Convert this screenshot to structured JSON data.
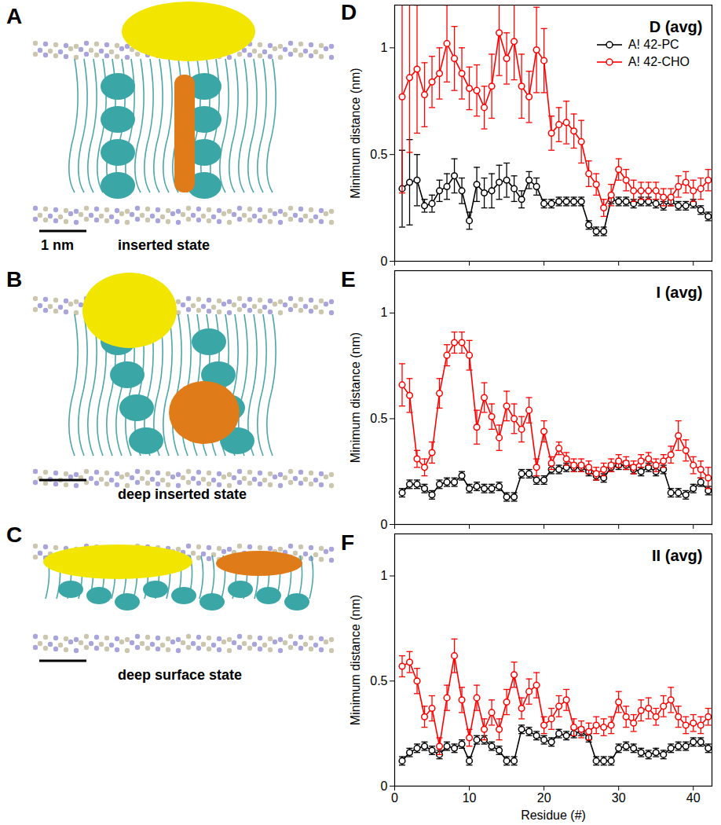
{
  "images": [
    {
      "letter": "A",
      "caption": "inserted state"
    },
    {
      "letter": "B",
      "caption": "deep inserted state"
    },
    {
      "letter": "C",
      "caption": "deep surface state"
    }
  ],
  "scale_bar_label": "1 nm",
  "chart_data": [
    {
      "type": "line",
      "panel": "D",
      "title": "D (avg)",
      "y_label": "Minimum distance (nm)",
      "x": [
        1,
        2,
        3,
        4,
        5,
        6,
        7,
        8,
        9,
        10,
        11,
        12,
        13,
        14,
        15,
        16,
        17,
        18,
        19,
        20,
        21,
        22,
        23,
        24,
        25,
        26,
        27,
        28,
        29,
        30,
        31,
        32,
        33,
        34,
        35,
        36,
        37,
        38,
        39,
        40,
        41,
        42
      ],
      "xlim": [
        0,
        42.5
      ],
      "xticks": [
        0,
        10,
        20,
        30,
        40
      ],
      "ylim": [
        0,
        1.2
      ],
      "yticks": [
        0,
        0.5,
        1
      ],
      "tick_labels": "y",
      "legend": "top-right",
      "series": [
        {
          "name": "A! 42-PC",
          "color": "#000000",
          "marker": "circle",
          "values": [
            0.34,
            0.37,
            0.38,
            0.26,
            0.27,
            0.33,
            0.35,
            0.4,
            0.33,
            0.19,
            0.36,
            0.32,
            0.33,
            0.37,
            0.38,
            0.34,
            0.29,
            0.38,
            0.35,
            0.27,
            0.27,
            0.28,
            0.28,
            0.28,
            0.28,
            0.17,
            0.14,
            0.14,
            0.29,
            0.28,
            0.28,
            0.27,
            0.28,
            0.28,
            0.27,
            0.26,
            0.28,
            0.26,
            0.26,
            0.27,
            0.24,
            0.21
          ],
          "errors": [
            0.18,
            0.2,
            0.12,
            0.03,
            0.04,
            0.05,
            0.06,
            0.08,
            0.06,
            0.04,
            0.08,
            0.07,
            0.08,
            0.08,
            0.08,
            0.06,
            0.04,
            0.04,
            0.04,
            0.02,
            0.02,
            0.02,
            0.02,
            0.02,
            0.02,
            0.02,
            0.02,
            0.02,
            0.02,
            0.02,
            0.02,
            0.02,
            0.02,
            0.02,
            0.02,
            0.02,
            0.02,
            0.02,
            0.02,
            0.02,
            0.02,
            0.02
          ]
        },
        {
          "name": "A! 42-CHO",
          "color": "#ff0000",
          "marker": "circle",
          "values": [
            0.77,
            0.86,
            0.9,
            0.78,
            0.84,
            0.88,
            1.02,
            0.95,
            0.88,
            0.81,
            0.8,
            0.72,
            0.82,
            1.07,
            0.95,
            1.03,
            0.82,
            0.77,
            0.99,
            0.94,
            0.6,
            0.64,
            0.65,
            0.61,
            0.56,
            0.41,
            0.36,
            0.25,
            0.31,
            0.43,
            0.38,
            0.33,
            0.33,
            0.33,
            0.33,
            0.3,
            0.3,
            0.35,
            0.37,
            0.33,
            0.34,
            0.38
          ],
          "errors": [
            0.45,
            0.35,
            0.3,
            0.15,
            0.12,
            0.12,
            0.18,
            0.15,
            0.12,
            0.1,
            0.12,
            0.1,
            0.15,
            0.2,
            0.12,
            0.18,
            0.15,
            0.12,
            0.2,
            0.15,
            0.08,
            0.08,
            0.1,
            0.08,
            0.1,
            0.06,
            0.05,
            0.04,
            0.05,
            0.05,
            0.05,
            0.05,
            0.04,
            0.04,
            0.04,
            0.04,
            0.04,
            0.05,
            0.05,
            0.05,
            0.05,
            0.05
          ]
        }
      ]
    },
    {
      "type": "line",
      "panel": "E",
      "title": "I (avg)",
      "y_label": "Minimum distance (nm)",
      "x": [
        1,
        2,
        3,
        4,
        5,
        6,
        7,
        8,
        9,
        10,
        11,
        12,
        13,
        14,
        15,
        16,
        17,
        18,
        19,
        20,
        21,
        22,
        23,
        24,
        25,
        26,
        27,
        28,
        29,
        30,
        31,
        32,
        33,
        34,
        35,
        36,
        37,
        38,
        39,
        40,
        41,
        42
      ],
      "xlim": [
        0,
        42.5
      ],
      "xticks": [
        0,
        10,
        20,
        30,
        40
      ],
      "ylim": [
        0,
        1.2
      ],
      "yticks": [
        0,
        0.5,
        1
      ],
      "tick_labels": "y",
      "series": [
        {
          "color": "#000000",
          "marker": "circle",
          "values": [
            0.15,
            0.19,
            0.19,
            0.17,
            0.14,
            0.19,
            0.2,
            0.2,
            0.23,
            0.17,
            0.18,
            0.17,
            0.17,
            0.18,
            0.13,
            0.13,
            0.24,
            0.24,
            0.21,
            0.21,
            0.26,
            0.26,
            0.27,
            0.27,
            0.27,
            0.25,
            0.23,
            0.22,
            0.27,
            0.28,
            0.28,
            0.26,
            0.25,
            0.27,
            0.25,
            0.26,
            0.15,
            0.15,
            0.14,
            0.17,
            0.2,
            0.16
          ],
          "errors": [
            0.02,
            0.02,
            0.02,
            0.02,
            0.02,
            0.02,
            0.02,
            0.02,
            0.02,
            0.02,
            0.02,
            0.02,
            0.02,
            0.02,
            0.02,
            0.02,
            0.02,
            0.02,
            0.02,
            0.02,
            0.02,
            0.02,
            0.02,
            0.02,
            0.02,
            0.02,
            0.02,
            0.02,
            0.02,
            0.02,
            0.02,
            0.02,
            0.02,
            0.02,
            0.02,
            0.02,
            0.02,
            0.02,
            0.02,
            0.02,
            0.02,
            0.02
          ]
        },
        {
          "color": "#ff0000",
          "marker": "circle",
          "values": [
            0.66,
            0.61,
            0.31,
            0.27,
            0.34,
            0.62,
            0.8,
            0.86,
            0.86,
            0.8,
            0.46,
            0.6,
            0.51,
            0.41,
            0.56,
            0.5,
            0.45,
            0.54,
            0.27,
            0.44,
            0.29,
            0.36,
            0.31,
            0.28,
            0.28,
            0.27,
            0.24,
            0.26,
            0.28,
            0.3,
            0.29,
            0.27,
            0.3,
            0.31,
            0.28,
            0.3,
            0.33,
            0.42,
            0.35,
            0.28,
            0.26,
            0.22
          ],
          "errors": [
            0.1,
            0.08,
            0.04,
            0.04,
            0.05,
            0.07,
            0.05,
            0.05,
            0.05,
            0.07,
            0.08,
            0.07,
            0.06,
            0.06,
            0.07,
            0.07,
            0.06,
            0.06,
            0.04,
            0.05,
            0.03,
            0.03,
            0.03,
            0.03,
            0.03,
            0.03,
            0.03,
            0.03,
            0.03,
            0.03,
            0.03,
            0.03,
            0.03,
            0.03,
            0.03,
            0.03,
            0.04,
            0.07,
            0.05,
            0.04,
            0.04,
            0.05
          ]
        }
      ]
    },
    {
      "type": "line",
      "panel": "F",
      "title": "II (avg)",
      "x_label": "Residue (#)",
      "y_label": "Minimum distance (nm)",
      "x": [
        1,
        2,
        3,
        4,
        5,
        6,
        7,
        8,
        9,
        10,
        11,
        12,
        13,
        14,
        15,
        16,
        17,
        18,
        19,
        20,
        21,
        22,
        23,
        24,
        25,
        26,
        27,
        28,
        29,
        30,
        31,
        32,
        33,
        34,
        35,
        36,
        37,
        38,
        39,
        40,
        41,
        42
      ],
      "xlim": [
        0,
        42.5
      ],
      "xticks": [
        0,
        10,
        20,
        30,
        40
      ],
      "ylim": [
        0,
        1.2
      ],
      "yticks": [
        0,
        0.5,
        1
      ],
      "series": [
        {
          "color": "#000000",
          "marker": "circle",
          "values": [
            0.12,
            0.16,
            0.18,
            0.19,
            0.17,
            0.15,
            0.19,
            0.18,
            0.2,
            0.12,
            0.22,
            0.22,
            0.19,
            0.17,
            0.12,
            0.12,
            0.27,
            0.26,
            0.24,
            0.22,
            0.21,
            0.25,
            0.24,
            0.25,
            0.26,
            0.23,
            0.12,
            0.12,
            0.12,
            0.18,
            0.19,
            0.18,
            0.16,
            0.15,
            0.16,
            0.15,
            0.18,
            0.19,
            0.19,
            0.21,
            0.21,
            0.18
          ],
          "errors": [
            0.02,
            0.02,
            0.02,
            0.02,
            0.02,
            0.02,
            0.02,
            0.02,
            0.02,
            0.02,
            0.02,
            0.02,
            0.02,
            0.02,
            0.02,
            0.02,
            0.02,
            0.02,
            0.02,
            0.02,
            0.02,
            0.02,
            0.02,
            0.02,
            0.02,
            0.02,
            0.02,
            0.02,
            0.02,
            0.02,
            0.02,
            0.02,
            0.02,
            0.02,
            0.02,
            0.02,
            0.02,
            0.02,
            0.02,
            0.02,
            0.02,
            0.02
          ]
        },
        {
          "color": "#ff0000",
          "marker": "circle",
          "values": [
            0.57,
            0.59,
            0.5,
            0.33,
            0.37,
            0.19,
            0.42,
            0.62,
            0.41,
            0.23,
            0.42,
            0.27,
            0.35,
            0.27,
            0.4,
            0.53,
            0.37,
            0.45,
            0.48,
            0.29,
            0.32,
            0.38,
            0.41,
            0.28,
            0.27,
            0.26,
            0.29,
            0.28,
            0.29,
            0.4,
            0.33,
            0.3,
            0.36,
            0.37,
            0.33,
            0.38,
            0.41,
            0.33,
            0.29,
            0.3,
            0.29,
            0.33
          ],
          "errors": [
            0.05,
            0.05,
            0.06,
            0.05,
            0.06,
            0.04,
            0.06,
            0.08,
            0.06,
            0.04,
            0.06,
            0.05,
            0.06,
            0.05,
            0.06,
            0.06,
            0.05,
            0.06,
            0.06,
            0.04,
            0.05,
            0.05,
            0.05,
            0.04,
            0.04,
            0.04,
            0.04,
            0.04,
            0.04,
            0.05,
            0.05,
            0.04,
            0.05,
            0.05,
            0.04,
            0.05,
            0.06,
            0.05,
            0.04,
            0.04,
            0.04,
            0.04
          ]
        }
      ]
    }
  ]
}
